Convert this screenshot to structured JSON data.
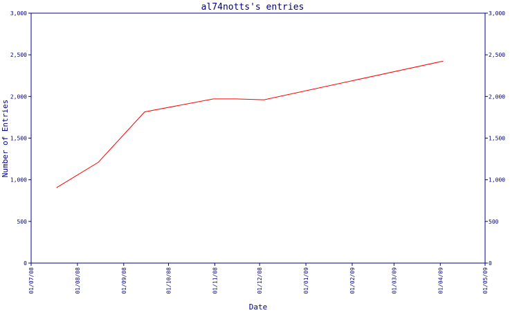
{
  "chart_data": {
    "type": "line",
    "title": "al74notts's entries",
    "xlabel": "Date",
    "ylabel": "Number of Entries",
    "x_ticks": [
      "01/07/08",
      "01/08/08",
      "01/09/08",
      "01/10/08",
      "01/11/08",
      "01/12/08",
      "01/01/09",
      "01/02/09",
      "01/03/09",
      "01/04/09",
      "01/05/09"
    ],
    "y_ticks": [
      "0",
      "500",
      "1,000",
      "1,500",
      "2,000",
      "2,500",
      "3,000"
    ],
    "ylim": [
      0,
      3000
    ],
    "grid": false,
    "right_axis_mirrored": true,
    "series": [
      {
        "color": "#ff0000",
        "points": [
          {
            "x": "2008-07-18",
            "y": 905
          },
          {
            "x": "2008-08-15",
            "y": 1210
          },
          {
            "x": "2008-09-15",
            "y": 1815
          },
          {
            "x": "2008-10-31",
            "y": 1970
          },
          {
            "x": "2008-11-15",
            "y": 1970
          },
          {
            "x": "2008-12-04",
            "y": 1960
          },
          {
            "x": "2009-04-03",
            "y": 2425
          }
        ]
      }
    ]
  }
}
